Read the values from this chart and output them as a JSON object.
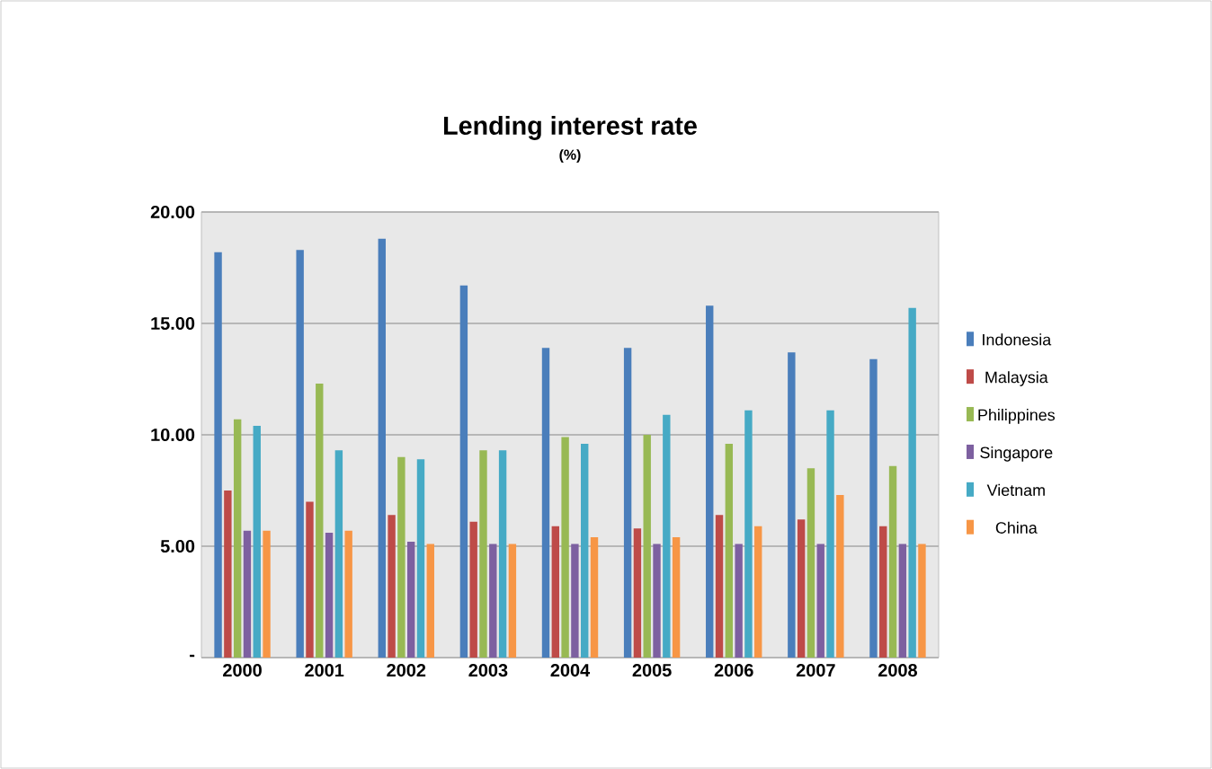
{
  "chart_data": {
    "type": "bar",
    "title": "Lending interest rate",
    "subtitle": "(%)",
    "categories": [
      "2000",
      "2001",
      "2002",
      "2003",
      "2004",
      "2005",
      "2006",
      "2007",
      "2008"
    ],
    "series": [
      {
        "name": "Indonesia",
        "color": "#4a7ebb",
        "values": [
          18.2,
          18.3,
          18.8,
          16.7,
          13.9,
          13.9,
          15.8,
          13.7,
          13.4
        ]
      },
      {
        "name": "Malaysia",
        "color": "#be4b48",
        "values": [
          7.5,
          7.0,
          6.4,
          6.1,
          5.9,
          5.8,
          6.4,
          6.2,
          5.9
        ]
      },
      {
        "name": "Philippines",
        "color": "#98b954",
        "values": [
          10.7,
          12.3,
          9.0,
          9.3,
          9.9,
          10.0,
          9.6,
          8.5,
          8.6
        ]
      },
      {
        "name": "Singapore",
        "color": "#7d60a0",
        "values": [
          5.7,
          5.6,
          5.2,
          5.1,
          5.1,
          5.1,
          5.1,
          5.1,
          5.1
        ]
      },
      {
        "name": "Vietnam",
        "color": "#46aac5",
        "values": [
          10.4,
          9.3,
          8.9,
          9.3,
          9.6,
          10.9,
          11.1,
          11.1,
          15.7
        ]
      },
      {
        "name": "China",
        "color": "#f79646",
        "values": [
          5.7,
          5.7,
          5.1,
          5.1,
          5.4,
          5.4,
          5.9,
          7.3,
          5.1
        ]
      }
    ],
    "ylim": [
      0,
      20
    ],
    "yticks": [
      {
        "value": 0,
        "label": "-"
      },
      {
        "value": 5,
        "label": "5.00"
      },
      {
        "value": 10,
        "label": "10.00"
      },
      {
        "value": 15,
        "label": "15.00"
      },
      {
        "value": 20,
        "label": "20.00"
      }
    ],
    "grid": "y",
    "legend": "right"
  }
}
